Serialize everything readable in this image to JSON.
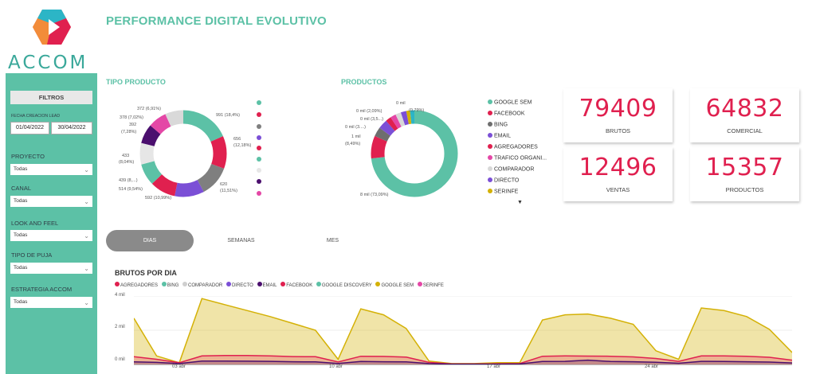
{
  "header": {
    "title": "PERFORMANCE DIGITAL EVOLUTIVO",
    "logo_text": "ACCOM",
    "logo_icon": "accom-logo-icon"
  },
  "sidebar": {
    "filtros_label": "FILTROS",
    "date_label": "FECHA CREACION LEAD",
    "date_from": "01/04/2022",
    "date_to": "30/04/2022",
    "filters": [
      {
        "label": "PROYECTO",
        "value": "Todas"
      },
      {
        "label": "CANAL",
        "value": "Todas"
      },
      {
        "label": "LOOK AND FEEL",
        "value": "Todas"
      },
      {
        "label": "TIPO DE PUJA",
        "value": "Todas"
      },
      {
        "label": "ESTRATEGIA ACCOM",
        "value": "Todas"
      }
    ]
  },
  "tipo_producto": {
    "title": "TIPO PRODUCTO",
    "labels": [
      "372 (6,91%)",
      "378 (7,02%)",
      "392",
      "(7,28%)",
      "433",
      "(8,04%)",
      "439 (8,...)",
      "514 (9,54%)",
      "592 (10,99%)",
      "620",
      "(11,51%)",
      "656",
      "(12,18%)",
      "991 (18,4%)"
    ],
    "legend_colors": [
      "#5cc1a6",
      "#e0204f",
      "#7f7f7f",
      "#7b4fd6",
      "#5cc1a6",
      "#e6e6e6",
      "#4b0f6e",
      "#e447a6"
    ]
  },
  "productos": {
    "title": "PRODUCTOS",
    "labels": [
      "0 mil",
      "(0,79%)",
      "0 mil (2,09%)",
      "0 mil (3,5...)",
      "0 mil (3....)",
      "1 mil",
      "(8,49%)",
      "8 mil (73,09%)"
    ],
    "legend": [
      {
        "name": "GOOGLE SEM",
        "color": "#5cc1a6"
      },
      {
        "name": "FACEBOOK",
        "color": "#e0204f"
      },
      {
        "name": "BING",
        "color": "#6e6e6e"
      },
      {
        "name": "EMAIL",
        "color": "#7b4fd6"
      },
      {
        "name": "AGREGADORES",
        "color": "#e0204f"
      },
      {
        "name": "TRAFICO ORGANI...",
        "color": "#e447a6"
      },
      {
        "name": "COMPARADOR",
        "color": "#d8d8d8"
      },
      {
        "name": "DIRECTO",
        "color": "#7b4fd6"
      },
      {
        "name": "SERINFE",
        "color": "#d4b106"
      }
    ],
    "more_icon": "caret-down-icon"
  },
  "kpis": [
    {
      "value": "79409",
      "label": "BRUTOS"
    },
    {
      "value": "64832",
      "label": "COMERCIAL"
    },
    {
      "value": "12496",
      "label": "VENTAS"
    },
    {
      "value": "15357",
      "label": "PRODUCTOS"
    }
  ],
  "tabs": [
    {
      "label": "DIAS",
      "active": true
    },
    {
      "label": "SEMANAS",
      "active": false
    },
    {
      "label": "MES",
      "active": false
    }
  ],
  "chart_data": {
    "type": "area",
    "title": "BRUTOS POR DIA",
    "ylim": [
      0,
      4000
    ],
    "y_ticks": [
      "4 mil",
      "2 mil",
      "0 mil"
    ],
    "x_ticks": [
      "03 abr",
      "10 abr",
      "17 abr",
      "24 abr"
    ],
    "x": [
      1,
      2,
      3,
      4,
      5,
      6,
      7,
      8,
      9,
      10,
      11,
      12,
      13,
      14,
      15,
      16,
      17,
      18,
      19,
      20,
      21,
      22,
      23,
      24,
      25,
      26,
      27,
      28,
      29,
      30
    ],
    "legend": [
      "AGREGADORES",
      "BING",
      "COMPARADOR",
      "DIRECTO",
      "EMAIL",
      "FACEBOOK",
      "GOOGLE DISCOVERY",
      "GOOGLE SEM",
      "SERINFE"
    ],
    "legend_colors": [
      "#e0204f",
      "#5cc1a6",
      "#cfcfcf",
      "#7b4fd6",
      "#4b0f6e",
      "#e0204f",
      "#5cc1a6",
      "#d4b106",
      "#e447a6"
    ],
    "series": [
      {
        "name": "GOOGLE SEM",
        "color": "#d4b106",
        "values": [
          2700,
          500,
          100,
          3850,
          3500,
          3150,
          2800,
          2400,
          2000,
          300,
          3250,
          2900,
          2100,
          200,
          50,
          50,
          100,
          100,
          2600,
          2900,
          2950,
          2700,
          2350,
          800,
          300,
          3300,
          3150,
          2800,
          2050,
          700
        ]
      },
      {
        "name": "AGREGADORES",
        "color": "#e0204f",
        "values": [
          450,
          300,
          100,
          500,
          520,
          520,
          500,
          460,
          450,
          150,
          480,
          470,
          430,
          120,
          30,
          30,
          40,
          50,
          480,
          500,
          490,
          480,
          440,
          350,
          180,
          500,
          500,
          480,
          420,
          250
        ]
      },
      {
        "name": "DIRECTO",
        "color": "#4b0f6e",
        "values": [
          150,
          120,
          50,
          200,
          200,
          190,
          180,
          160,
          150,
          60,
          170,
          160,
          150,
          50,
          20,
          20,
          20,
          30,
          170,
          180,
          250,
          170,
          160,
          130,
          70,
          180,
          170,
          160,
          140,
          90
        ]
      }
    ]
  }
}
